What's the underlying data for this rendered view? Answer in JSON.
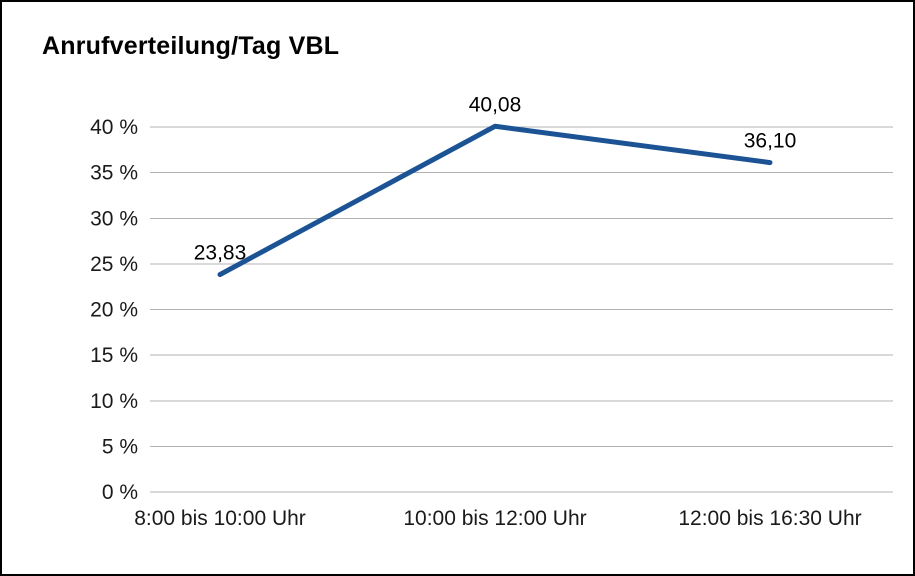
{
  "chart_data": {
    "type": "line",
    "title": "Anrufverteilung/Tag VBL",
    "categories": [
      "8:00 bis 10:00 Uhr",
      "10:00 bis 12:00 Uhr",
      "12:00 bis 16:30 Uhr"
    ],
    "values": [
      23.83,
      40.08,
      36.1
    ],
    "value_labels": [
      "23,83",
      "40,08",
      "36,10"
    ],
    "xlabel": "",
    "ylabel": "",
    "ylim": [
      0,
      40
    ],
    "y_step": 5,
    "y_ticks": [
      "0 %",
      "5 %",
      "10 %",
      "15 %",
      "20 %",
      "25 %",
      "30 %",
      "35 %",
      "40 %"
    ],
    "grid": true,
    "legend_position": "none",
    "colors": {
      "line": "#1b5394",
      "grid": "#b3b3b3",
      "tick_text": "#1a1a1a",
      "data_label_text": "#000000",
      "background": "#ffffff"
    }
  }
}
